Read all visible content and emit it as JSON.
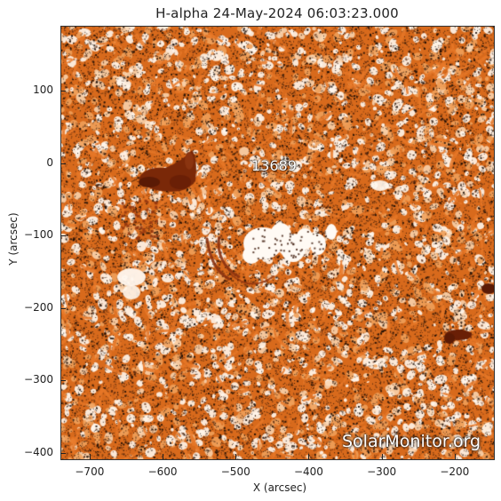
{
  "title": "H-alpha 24-May-2024 06:03:23.000",
  "axes": {
    "xlabel": "X (arcsec)",
    "ylabel": "Y (arcsec)",
    "xrange": [
      -740,
      -145
    ],
    "yrange": [
      -410,
      190
    ],
    "xticks": [
      {
        "label": "−700",
        "value": -700
      },
      {
        "label": "−600",
        "value": -600
      },
      {
        "label": "−500",
        "value": -500
      },
      {
        "label": "−400",
        "value": -400
      },
      {
        "label": "−300",
        "value": -300
      },
      {
        "label": "−200",
        "value": -200
      }
    ],
    "yticks": [
      {
        "label": "100",
        "value": 100
      },
      {
        "label": "0",
        "value": 0
      },
      {
        "label": "−100",
        "value": -100
      },
      {
        "label": "−200",
        "value": -200
      },
      {
        "label": "−300",
        "value": -300
      },
      {
        "label": "−400",
        "value": -400
      }
    ]
  },
  "region_label": "13689",
  "watermark": "SolarMonitor.org",
  "colors": {
    "background": "#d86a1c",
    "bright": "#fff2e6",
    "dark": "#1a0c05",
    "plage_dark": "#7a2808"
  }
}
